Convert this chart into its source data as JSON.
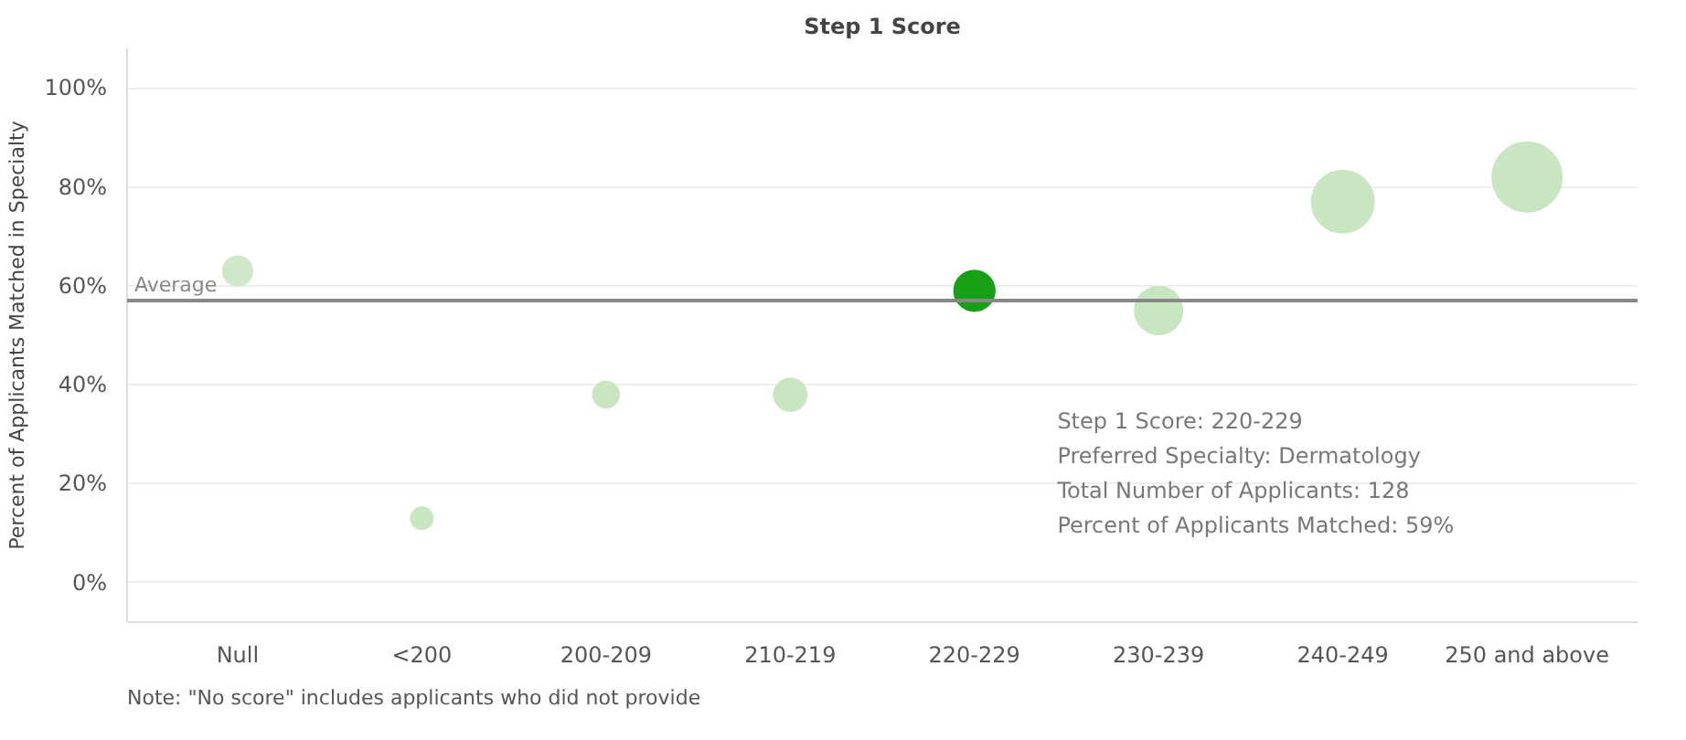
{
  "chart_data": {
    "type": "bubble",
    "title": "Step 1 Score",
    "ylabel": "Percent of Applicants Matched in Specialty",
    "categories": [
      "Null",
      "<200",
      "200-209",
      "210-219",
      "220-229",
      "230-239",
      "240-249",
      "250 and above"
    ],
    "values": [
      63,
      13,
      38,
      38,
      59,
      55,
      77,
      82
    ],
    "sizes": [
      0.18,
      0.1,
      0.14,
      0.22,
      0.34,
      0.47,
      0.8,
      1
    ],
    "colors": [
      "#cfe8c8",
      "#c8e6c0",
      "#c8e6c0",
      "#c8e6c0",
      "#16a016",
      "#c8e6c0",
      "#c8e6c0",
      "#c8e6c0"
    ],
    "ylim": [
      -8,
      108
    ],
    "yticks": [
      {
        "value": 0,
        "label": "0%"
      },
      {
        "value": 20,
        "label": "20%"
      },
      {
        "value": 40,
        "label": "40%"
      },
      {
        "value": 60,
        "label": "60%"
      },
      {
        "value": 80,
        "label": "80%"
      },
      {
        "value": 100,
        "label": "100%"
      }
    ],
    "grid": "y",
    "ref_lines": [
      {
        "axis": "y",
        "value": 57,
        "label": "Average",
        "color": "#888888"
      }
    ],
    "annotations": [
      "Step 1 Score:  220-229",
      "Preferred Specialty:  Dermatology",
      "Total Number of Applicants:  128",
      "Percent of Applicants Matched:  59%",
      "Note: \"No score\" includes applicants who did not provide"
    ]
  }
}
